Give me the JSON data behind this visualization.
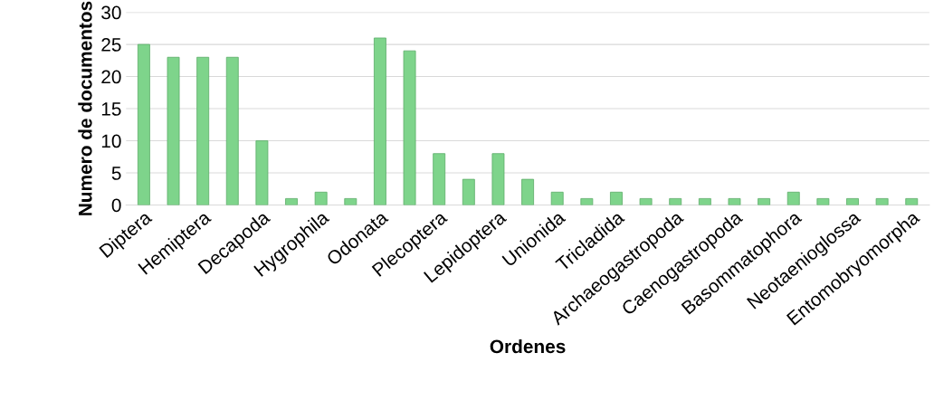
{
  "chart_data": {
    "type": "bar",
    "xlabel": "Ordenes",
    "ylabel": "Numero de documentos",
    "categories": [
      "Diptera",
      null,
      "Hemiptera",
      null,
      "Decapoda",
      null,
      "Hygrophila",
      null,
      "Odonata",
      null,
      "Plecoptera",
      null,
      "Lepidoptera",
      null,
      "Unionida",
      null,
      "Tricladida",
      null,
      "Archaeogastropoda",
      null,
      "Caenogastropoda",
      null,
      "Basommatophora",
      null,
      "Neotaenioglossa",
      null,
      "Entomobryomorpha"
    ],
    "values": [
      25,
      23,
      23,
      23,
      10,
      1,
      2,
      1,
      26,
      24,
      8,
      4,
      8,
      4,
      2,
      1,
      2,
      1,
      1,
      1,
      1,
      1,
      2,
      1,
      1,
      1,
      1
    ],
    "color": "#7ed48b",
    "ylim": [
      0,
      30
    ],
    "yticks": [
      0,
      5,
      10,
      15,
      20,
      25,
      30
    ],
    "grid": "y",
    "legend": false
  }
}
